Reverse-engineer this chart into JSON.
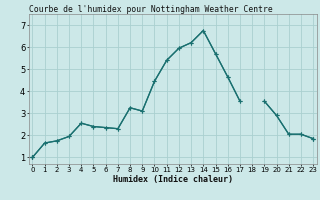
{
  "title": "Courbe de l'humidex pour Nottingham Weather Centre",
  "xlabel": "Humidex (Indice chaleur)",
  "bg_color": "#cce8e8",
  "grid_color": "#aad0d0",
  "line_color": "#1a7070",
  "x_ticks": [
    0,
    1,
    2,
    3,
    4,
    5,
    6,
    7,
    8,
    9,
    10,
    11,
    12,
    13,
    14,
    15,
    16,
    17,
    18,
    19,
    20,
    21,
    22,
    23
  ],
  "ylim": [
    0.7,
    7.5
  ],
  "xlim": [
    -0.3,
    23.3
  ],
  "y_ticks": [
    1,
    2,
    3,
    4,
    5,
    6,
    7
  ],
  "series": [
    [
      1.0,
      1.65,
      1.75,
      1.95,
      2.55,
      2.4,
      2.35,
      2.3,
      3.25,
      3.1,
      4.45,
      5.4,
      5.95,
      6.2,
      6.75,
      5.7,
      4.65,
      3.55,
      null,
      null,
      null,
      null,
      null,
      null
    ],
    [
      1.0,
      1.65,
      1.75,
      1.95,
      2.55,
      2.4,
      2.35,
      2.3,
      3.25,
      3.1,
      4.45,
      5.4,
      5.95,
      6.2,
      6.75,
      5.7,
      4.65,
      3.55,
      null,
      3.55,
      2.9,
      2.05,
      2.05,
      1.85
    ],
    [
      1.0,
      null,
      null,
      null,
      null,
      null,
      null,
      null,
      null,
      null,
      null,
      null,
      null,
      null,
      null,
      null,
      null,
      null,
      null,
      3.55,
      2.9,
      2.05,
      2.05,
      1.85
    ],
    [
      1.0,
      null,
      null,
      null,
      null,
      null,
      null,
      null,
      null,
      null,
      null,
      null,
      null,
      null,
      null,
      null,
      null,
      null,
      null,
      null,
      null,
      null,
      null,
      1.85
    ]
  ]
}
